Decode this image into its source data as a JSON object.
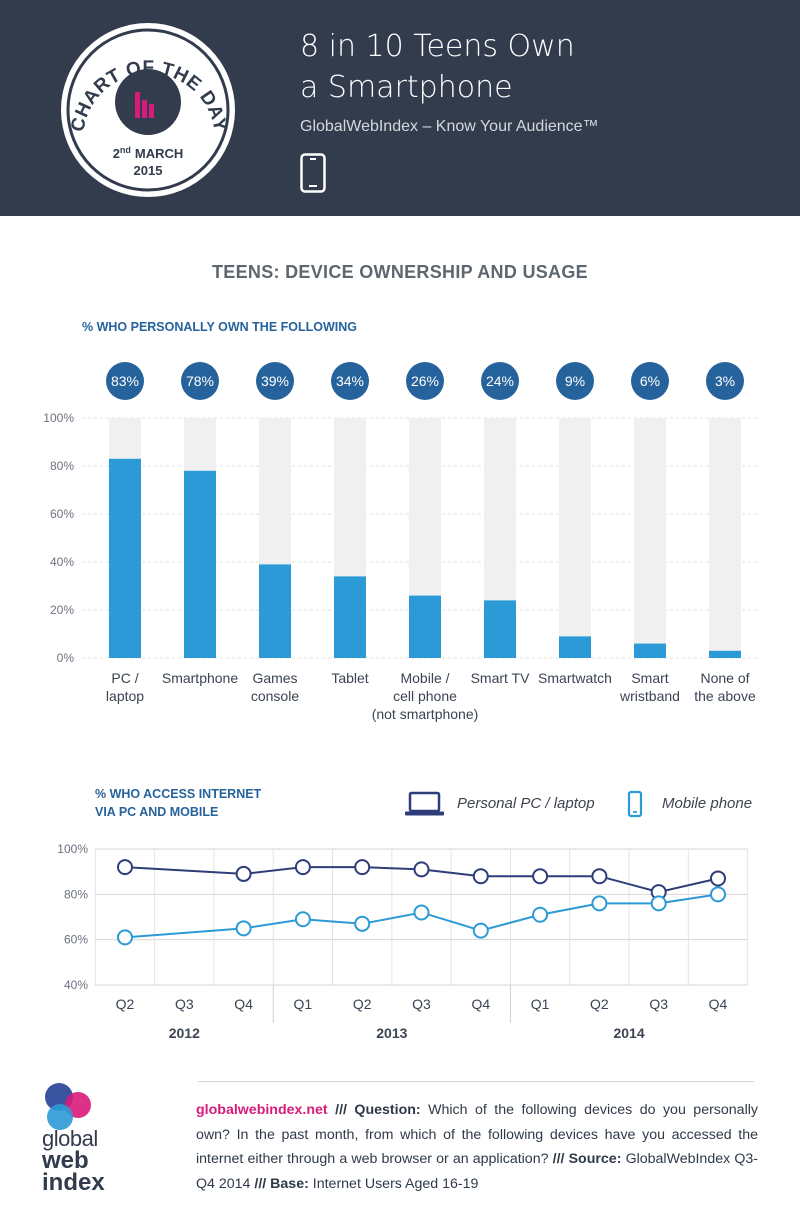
{
  "header": {
    "badge_top": "CHART OF THE DAY",
    "badge_day": "2",
    "badge_suffix": "nd",
    "badge_month": "MARCH",
    "badge_year": "2015",
    "title_line1": "8 in 10 Teens Own",
    "title_line2": "a Smartphone",
    "tagline": "GlobalWebIndex – Know Your Audience™",
    "icon": "smartphone-icon"
  },
  "main_title": "TEENS: DEVICE OWNERSHIP AND USAGE",
  "section1_label": "% WHO PERSONALLY OWN THE FOLLOWING",
  "section2_label_line1": "% WHO ACCESS INTERNET",
  "section2_label_line2": "VIA PC AND MOBILE",
  "legend": {
    "pc": "Personal PC / laptop",
    "mobile": "Mobile phone"
  },
  "colors": {
    "header_bg": "#333c4d",
    "bar": "#2c9ad6",
    "bar_bg": "#f0f0f0",
    "pc_line": "#2e3d7a",
    "mobile_line": "#2c9ad6",
    "badge_accent": "#d81b7a",
    "section_label": "#26629c"
  },
  "chart_data": [
    {
      "type": "bar",
      "title": "% WHO PERSONALLY OWN THE FOLLOWING",
      "categories": [
        [
          "PC /",
          "laptop"
        ],
        [
          "Smartphone"
        ],
        [
          "Games",
          "console"
        ],
        [
          "Tablet"
        ],
        [
          "Mobile /",
          "cell phone",
          "(not smartphone)"
        ],
        [
          "Smart TV"
        ],
        [
          "Smartwatch"
        ],
        [
          "Smart",
          "wristband"
        ],
        [
          "None of",
          "the above"
        ]
      ],
      "values": [
        83,
        78,
        39,
        34,
        26,
        24,
        9,
        6,
        3
      ],
      "data_labels": [
        "83%",
        "78%",
        "39%",
        "34%",
        "26%",
        "24%",
        "9%",
        "6%",
        "3%"
      ],
      "yticks": [
        "0%",
        "20%",
        "40%",
        "60%",
        "80%",
        "100%"
      ],
      "ylim": [
        0,
        100
      ]
    },
    {
      "type": "line",
      "title": "% WHO ACCESS INTERNET VIA PC AND MOBILE",
      "x": [
        "Q2",
        "Q3",
        "Q4",
        "Q1",
        "Q2",
        "Q3",
        "Q4",
        "Q1",
        "Q2",
        "Q3",
        "Q4"
      ],
      "years": [
        {
          "label": "2012",
          "start": 0,
          "end": 2
        },
        {
          "label": "2013",
          "start": 3,
          "end": 6
        },
        {
          "label": "2014",
          "start": 7,
          "end": 10
        }
      ],
      "series": [
        {
          "name": "Personal PC / laptop",
          "values": [
            92,
            null,
            89,
            92,
            92,
            91,
            88,
            88,
            88,
            81,
            87
          ]
        },
        {
          "name": "Mobile phone",
          "values": [
            61,
            null,
            65,
            69,
            67,
            72,
            64,
            71,
            76,
            76,
            80
          ]
        }
      ],
      "yticks": [
        "40%",
        "60%",
        "80%",
        "100%"
      ],
      "ylim": [
        40,
        100
      ]
    }
  ],
  "footer": {
    "site": "globalwebindex.net",
    "sep1": "///",
    "question_label": "Question:",
    "question": "Which of the following devices do you personally own? In the past month, from which of the following devices have you accessed the internet either through a web browser or an application?",
    "sep2": "///",
    "source_label": "Source:",
    "source": "GlobalWebIndex Q3-Q4 2014",
    "sep3": "///",
    "base_label": "Base:",
    "base": "Internet Users Aged 16-19",
    "logo_line1": "global",
    "logo_line2": "web",
    "logo_line3": "index"
  }
}
